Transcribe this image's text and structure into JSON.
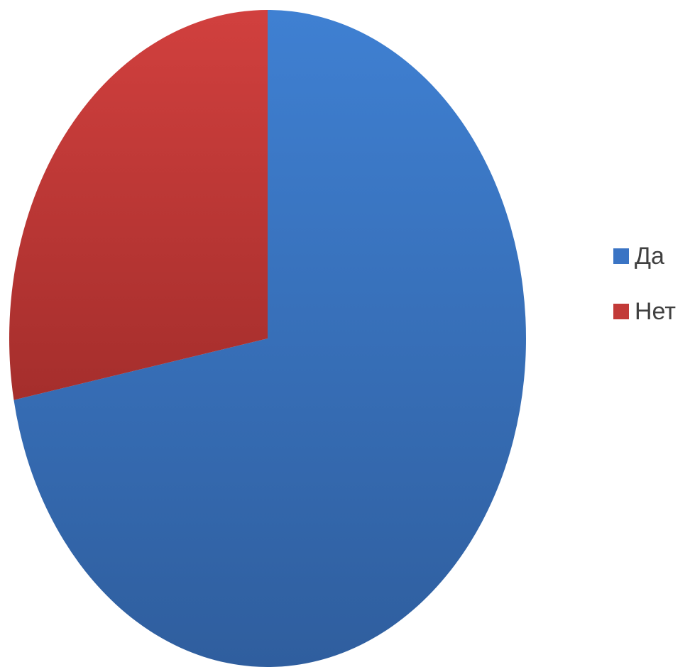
{
  "chart_data": {
    "type": "pie",
    "title": "",
    "slices": [
      {
        "label": "Да",
        "value": 72,
        "color": "#3A74C4"
      },
      {
        "label": "Нет",
        "value": 28,
        "color": "#C23A38"
      }
    ],
    "start_angle_deg": 0,
    "direction": "clockwise",
    "legend_position": "right"
  }
}
